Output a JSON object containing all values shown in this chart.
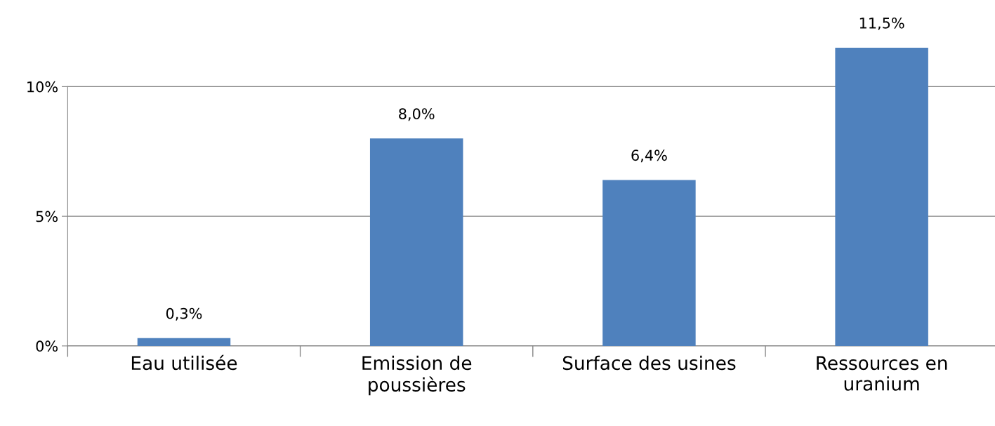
{
  "chart_data": {
    "type": "bar",
    "categories": [
      "Eau utilisée",
      "Emission de\npoussières",
      "Surface des usines",
      "Ressources en\nuranium"
    ],
    "values": [
      0.3,
      8.0,
      6.4,
      11.5
    ],
    "value_labels": [
      "0,3%",
      "8,0%",
      "6,4%",
      "11,5%"
    ],
    "color": "#4f81bd",
    "ylim": [
      0,
      11.5
    ],
    "yticks": [
      {
        "value": 0,
        "label": "0%"
      },
      {
        "value": 5,
        "label": "5%"
      },
      {
        "value": 10,
        "label": "10%"
      }
    ],
    "grid": "y",
    "legend": false
  }
}
